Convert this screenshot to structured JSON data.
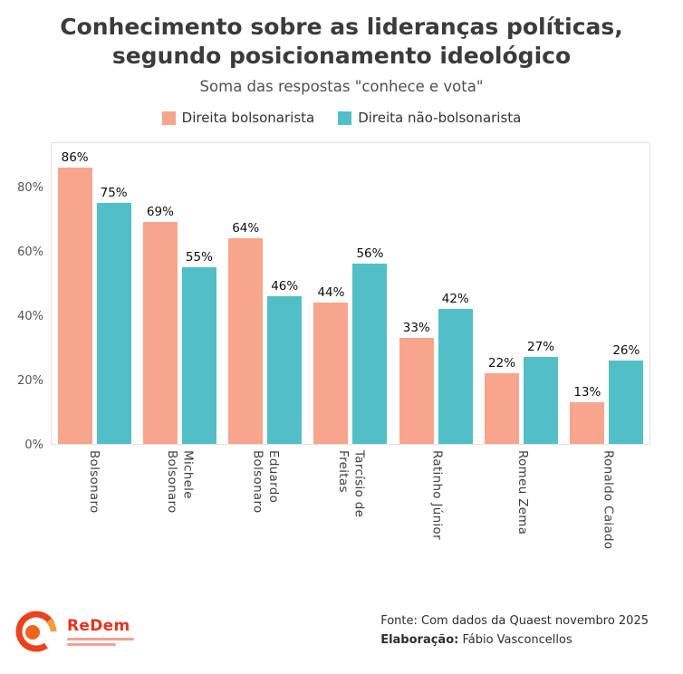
{
  "chart_data": {
    "type": "bar",
    "title": "Conhecimento sobre as lideranças políticas, segundo posicionamento ideológico",
    "title_lines": [
      "Conhecimento sobre as lideranças políticas,",
      "segundo posicionamento ideológico"
    ],
    "subtitle": "Soma das respostas \"conhece e vota\"",
    "categories": [
      "Bolsonaro",
      "Michele\nBolsonaro",
      "Eduardo\nBolsonaro",
      "Tarcísio de\nFreitas",
      "Ratinho Júnior",
      "Romeu Zema",
      "Ronaldo Caiado"
    ],
    "series": [
      {
        "name": "Direita bolsonarista",
        "color": "#f7a58c",
        "values": [
          86,
          69,
          64,
          44,
          33,
          22,
          13
        ]
      },
      {
        "name": "Direita não-bolsonarista",
        "color": "#52bec6",
        "values": [
          75,
          55,
          46,
          56,
          42,
          27,
          26
        ]
      }
    ],
    "value_suffix": "%",
    "yticks": [
      0,
      20,
      40,
      60,
      80
    ],
    "ylim": [
      0,
      94
    ],
    "xlabel": "",
    "ylabel": "",
    "grid": false,
    "legend_position": "top"
  },
  "footer": {
    "fonte_label": "Fonte:",
    "fonte_text": "Com dados da Quaest novembro 2025",
    "elaboracao_label": "Elaboração:",
    "elaboracao_text": "Fábio Vasconcellos",
    "logo_text": "ReDem"
  },
  "colors": {
    "bolsonarista": "#f7a58c",
    "nao_bolsonarista": "#52bec6",
    "logo_red": "#e8341c",
    "title_text": "#3b3b3b"
  }
}
